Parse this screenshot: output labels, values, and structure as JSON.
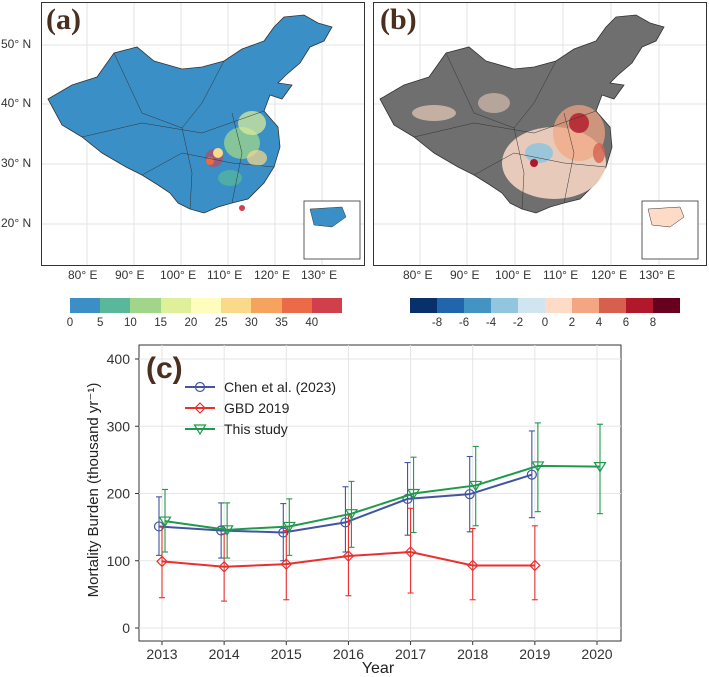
{
  "panel_a": {
    "label": "(a)",
    "lat_ticks": [
      "50° N",
      "40° N",
      "30° N",
      "20° N"
    ],
    "lon_ticks": [
      "80° E",
      "90° E",
      "100° E",
      "110° E",
      "120° E",
      "130° E"
    ],
    "colorbar": {
      "colors": [
        "#3a8fc6",
        "#5ab89a",
        "#a0d58a",
        "#dff09a",
        "#fffdbe",
        "#fbd98a",
        "#f6a35e",
        "#ed6a48",
        "#d13e4c"
      ],
      "ticks": [
        "0",
        "5",
        "10",
        "15",
        "20",
        "25",
        "30",
        "35",
        "40"
      ]
    }
  },
  "panel_b": {
    "label": "(b)",
    "lon_ticks": [
      "80° E",
      "90° E",
      "100° E",
      "110° E",
      "120° E",
      "130° E"
    ],
    "colorbar": {
      "colors": [
        "#08306b",
        "#2166ac",
        "#4393c3",
        "#92c5de",
        "#d1e5f0",
        "#fddbc7",
        "#f4a582",
        "#d6604d",
        "#b2182b",
        "#67001f"
      ],
      "ticks": [
        "-8",
        "-6",
        "-4",
        "-2",
        "0",
        "2",
        "4",
        "6",
        "8"
      ]
    }
  },
  "panel_c": {
    "label": "(c)"
  },
  "chart_data": {
    "type": "line",
    "title": "",
    "xlabel": "Year",
    "ylabel": "Mortality Burden (thousand yr⁻¹)",
    "ylim": [
      0,
      400
    ],
    "yticks": [
      0,
      100,
      200,
      300,
      400
    ],
    "x": [
      2013,
      2014,
      2015,
      2016,
      2017,
      2018,
      2019,
      2020
    ],
    "series": [
      {
        "name": "Chen et al. (2023)",
        "color": "#4354a0",
        "marker": "circle",
        "x": [
          2013,
          2014,
          2015,
          2016,
          2017,
          2018,
          2019
        ],
        "values": [
          151,
          145,
          142,
          157,
          192,
          199,
          228
        ],
        "lower": [
          108,
          104,
          100,
          113,
          138,
          143,
          164
        ],
        "upper": [
          195,
          186,
          185,
          210,
          246,
          255,
          293
        ]
      },
      {
        "name": "GBD 2019",
        "color": "#e8302e",
        "marker": "diamond",
        "x": [
          2013,
          2014,
          2015,
          2016,
          2017,
          2018,
          2019
        ],
        "values": [
          99,
          91,
          95,
          107,
          113,
          93,
          93
        ],
        "lower": [
          45,
          40,
          42,
          48,
          52,
          42,
          42
        ],
        "upper": [
          150,
          140,
          145,
          168,
          178,
          148,
          152
        ]
      },
      {
        "name": "This study",
        "color": "#1f9a4b",
        "marker": "triangle-down",
        "x": [
          2013,
          2014,
          2015,
          2016,
          2017,
          2018,
          2019,
          2020
        ],
        "values": [
          159,
          146,
          151,
          170,
          200,
          212,
          241,
          240
        ],
        "lower": [
          113,
          104,
          108,
          120,
          142,
          152,
          173,
          170
        ],
        "upper": [
          206,
          186,
          192,
          218,
          254,
          270,
          305,
          303
        ]
      }
    ]
  }
}
